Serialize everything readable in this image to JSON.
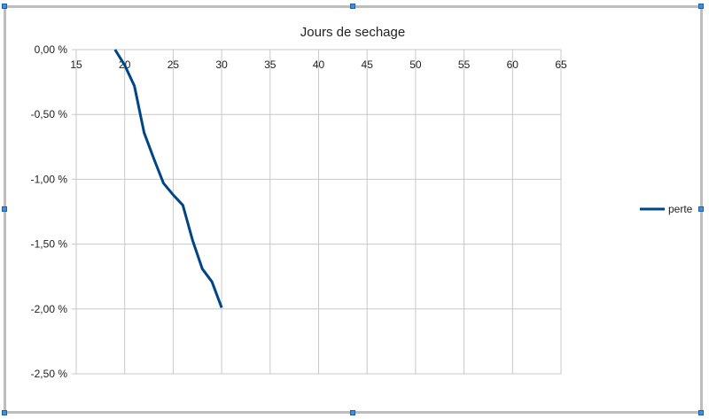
{
  "chart_data": {
    "type": "line",
    "title": "Jours de sechage",
    "xlabel": "",
    "ylabel": "",
    "xlim": [
      15,
      65
    ],
    "ylim": [
      -2.5,
      0
    ],
    "x_ticks": [
      "15",
      "20",
      "25",
      "30",
      "35",
      "40",
      "45",
      "50",
      "55",
      "60",
      "65"
    ],
    "y_ticks": [
      "0,00 %",
      "-0,50 %",
      "-1,00 %",
      "-1,50 %",
      "-2,00 %",
      "-2,50 %"
    ],
    "grid": true,
    "legend": "right",
    "series": [
      {
        "name": "perte",
        "color": "#004586",
        "x": [
          19,
          20,
          21,
          22,
          23,
          24,
          25,
          26,
          27,
          28,
          29,
          30
        ],
        "y": [
          0,
          -0.12,
          -0.28,
          -0.64,
          -0.84,
          -1.03,
          -1.12,
          -1.2,
          -1.47,
          -1.69,
          -1.79,
          -1.99
        ]
      }
    ]
  }
}
